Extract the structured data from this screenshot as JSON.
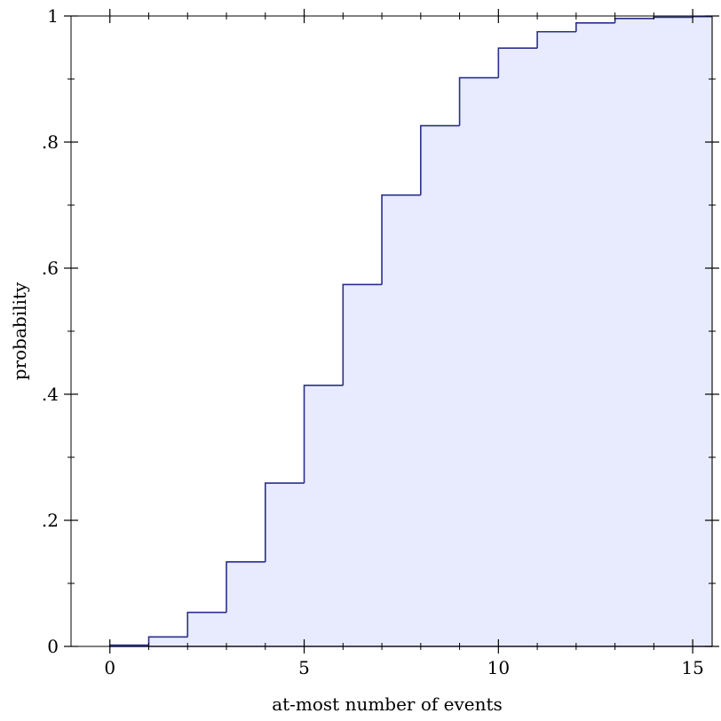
{
  "chart_data": {
    "type": "area",
    "title": "",
    "xlabel": "at-most number of events",
    "ylabel": "probability",
    "xlim": [
      -1,
      15.5
    ],
    "ylim": [
      0,
      1
    ],
    "x_ticks_major": [
      0,
      5,
      10,
      15
    ],
    "x_tick_labels": [
      "0",
      "5",
      "10",
      "15"
    ],
    "x_ticks_minor": [
      1,
      2,
      3,
      4,
      6,
      7,
      8,
      9,
      11,
      12,
      13,
      14
    ],
    "y_ticks_major": [
      0,
      0.2,
      0.4,
      0.6,
      0.8,
      1
    ],
    "y_tick_labels": [
      "0",
      ".2",
      ".4",
      ".6",
      ".8",
      "1"
    ],
    "y_ticks_minor": [
      0.1,
      0.3,
      0.5,
      0.7,
      0.9
    ],
    "grid": false,
    "step": true,
    "series": [
      {
        "x": [
          0,
          1,
          2,
          3,
          4,
          5,
          6,
          7,
          8,
          9,
          10,
          11,
          12,
          13,
          14,
          15
        ],
        "values": [
          0.002,
          0.015,
          0.054,
          0.134,
          0.259,
          0.414,
          0.574,
          0.716,
          0.826,
          0.902,
          0.949,
          0.975,
          0.989,
          0.996,
          0.998,
          0.999
        ]
      }
    ],
    "colors": {
      "line": "#2a2f8c",
      "fill": "#e8ebfd",
      "axis": "#000000",
      "fill_edge": "#b4b8cc"
    }
  }
}
